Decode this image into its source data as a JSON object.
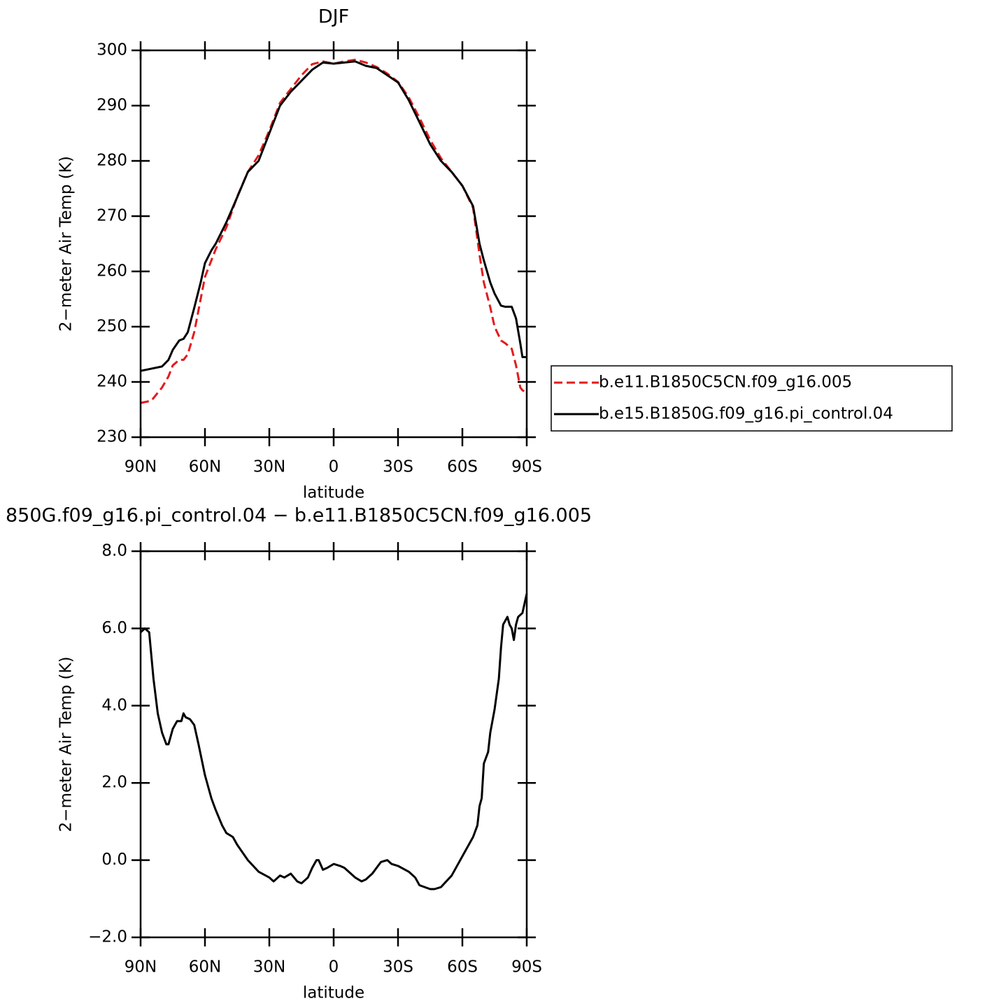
{
  "chart_data": [
    {
      "type": "line",
      "title": "DJF",
      "xlabel": "latitude",
      "ylabel": "2−meter Air Temp (K)",
      "x": [
        90,
        85,
        80,
        77,
        75,
        72,
        70,
        68,
        65,
        62,
        60,
        57,
        55,
        50,
        45,
        40,
        35,
        30,
        25,
        20,
        15,
        10,
        5,
        0,
        -5,
        -10,
        -15,
        -20,
        -25,
        -30,
        -35,
        -40,
        -45,
        -50,
        -55,
        -60,
        -65,
        -68,
        -70,
        -73,
        -75,
        -78,
        -80,
        -83,
        -85,
        -87,
        -88,
        -90
      ],
      "xlim": [
        90,
        -90
      ],
      "xticks": [
        {
          "value": 90,
          "label": "90N"
        },
        {
          "value": 60,
          "label": "60N"
        },
        {
          "value": 30,
          "label": "30N"
        },
        0,
        {
          "value": -30,
          "label": "30S"
        },
        {
          "value": -60,
          "label": "60S"
        },
        {
          "value": -90,
          "label": "90S"
        }
      ],
      "ylim": [
        230,
        300
      ],
      "yticks": [
        230,
        240,
        250,
        260,
        270,
        280,
        290,
        300
      ],
      "series": [
        {
          "name": "b.e11.B1850C5CN.f09_g16.005",
          "color": "#e41a1c",
          "dash": true,
          "values": [
            236.2,
            236.6,
            239,
            241,
            243,
            244,
            244,
            245,
            249,
            255,
            259,
            262,
            264,
            268,
            273.5,
            278,
            281,
            285.5,
            290.5,
            293,
            295.5,
            297.5,
            298,
            297.6,
            298,
            298.3,
            297.8,
            297,
            295.8,
            294.3,
            291.5,
            287.8,
            283.8,
            280.5,
            278,
            275.5,
            271.5,
            263,
            258,
            253.5,
            250,
            247.5,
            247,
            246,
            243,
            239,
            238.5,
            238
          ]
        },
        {
          "name": "b.e15.B1850G.f09_g16.pi_control.04",
          "color": "#000000",
          "dash": false,
          "values": [
            242.0,
            242.4,
            242.8,
            244,
            245.8,
            247.5,
            247.8,
            249,
            253.4,
            258,
            261.5,
            263.8,
            265,
            268.9,
            273.4,
            278,
            280,
            285,
            290,
            292.5,
            294.5,
            296.5,
            297.8,
            297.6,
            297.8,
            298,
            297.2,
            296.8,
            295.5,
            294.2,
            291,
            287,
            283,
            280,
            278,
            275.5,
            271.8,
            265,
            262,
            258,
            256,
            253.8,
            253.6,
            253.6,
            251.5,
            247,
            244.5,
            244.5
          ]
        }
      ]
    },
    {
      "type": "line",
      "title": "850G.f09_g16.pi_control.04 − b.e11.B1850C5CN.f09_g16.005",
      "xlabel": "latitude",
      "ylabel": "2−meter Air Temp (K)",
      "x": [
        90,
        88,
        86,
        84,
        82,
        80,
        78,
        77,
        75,
        73,
        71,
        70,
        69,
        67,
        65,
        63,
        60,
        57,
        55,
        52,
        50,
        47,
        45,
        40,
        35,
        30,
        28,
        25,
        23,
        20,
        17,
        15,
        12,
        10,
        8,
        7,
        5,
        3,
        0,
        -3,
        -5,
        -8,
        -10,
        -13,
        -15,
        -18,
        -20,
        -22,
        -25,
        -27,
        -30,
        -35,
        -38,
        -40,
        -45,
        -47,
        -50,
        -55,
        -60,
        -65,
        -67,
        -68,
        -69,
        -70,
        -72,
        -73,
        -75,
        -77,
        -78,
        -79,
        -80,
        -81,
        -82,
        -83,
        -84,
        -85,
        -86,
        -88,
        -90
      ],
      "xlim": [
        90,
        -90
      ],
      "xticks": [
        {
          "value": 90,
          "label": "90N"
        },
        {
          "value": 60,
          "label": "60N"
        },
        {
          "value": 30,
          "label": "30N"
        },
        0,
        {
          "value": -30,
          "label": "30S"
        },
        {
          "value": -60,
          "label": "60S"
        },
        {
          "value": -90,
          "label": "90S"
        }
      ],
      "ylim": [
        -2,
        8
      ],
      "yticks": [
        {
          "value": -2,
          "label": "−2.0"
        },
        {
          "value": 0,
          "label": "0.0"
        },
        {
          "value": 2,
          "label": "2.0"
        },
        {
          "value": 4,
          "label": "4.0"
        },
        {
          "value": 6,
          "label": "6.0"
        },
        {
          "value": 8,
          "label": "8.0"
        }
      ],
      "series": [
        {
          "color": "#000000",
          "dash": false,
          "values": [
            5.9,
            6.0,
            5.9,
            4.7,
            3.8,
            3.3,
            3.0,
            3.0,
            3.4,
            3.6,
            3.6,
            3.8,
            3.7,
            3.65,
            3.5,
            3.0,
            2.2,
            1.6,
            1.3,
            0.9,
            0.7,
            0.6,
            0.4,
            0.0,
            -0.3,
            -0.45,
            -0.55,
            -0.4,
            -0.45,
            -0.35,
            -0.55,
            -0.6,
            -0.45,
            -0.2,
            0.0,
            0.0,
            -0.25,
            -0.2,
            -0.1,
            -0.15,
            -0.2,
            -0.35,
            -0.45,
            -0.55,
            -0.5,
            -0.35,
            -0.2,
            -0.05,
            0.0,
            -0.1,
            -0.15,
            -0.3,
            -0.45,
            -0.65,
            -0.75,
            -0.75,
            -0.7,
            -0.4,
            0.1,
            0.6,
            0.9,
            1.4,
            1.6,
            2.5,
            2.8,
            3.3,
            3.9,
            4.7,
            5.5,
            6.1,
            6.2,
            6.3,
            6.1,
            6.0,
            5.7,
            6.1,
            6.3,
            6.4,
            6.9
          ]
        }
      ]
    }
  ]
}
